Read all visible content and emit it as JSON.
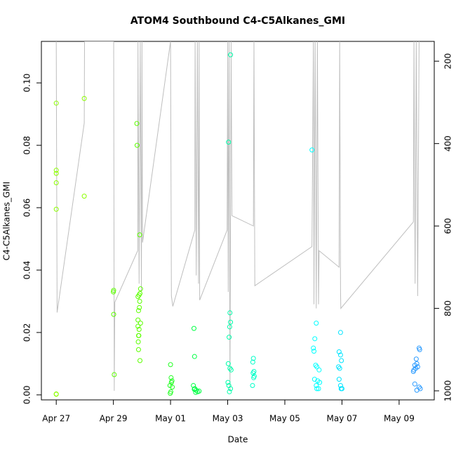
{
  "chart_data": {
    "type": "scatter",
    "title": "ATOM4 Southbound C4-C5Alkanes_GMI",
    "xlabel": "Date",
    "ylabel": "C4-C5Alkanes_GMI",
    "xlim": [
      -0.52,
      13.23
    ],
    "xticks": [
      {
        "value": 0,
        "label": "Apr 27"
      },
      {
        "value": 2,
        "label": "Apr 29"
      },
      {
        "value": 4,
        "label": "May 01"
      },
      {
        "value": 6,
        "label": "May 03"
      },
      {
        "value": 8,
        "label": "May 05"
      },
      {
        "value": 10,
        "label": "May 07"
      },
      {
        "value": 12,
        "label": "May 09"
      }
    ],
    "ylim": [
      -0.0016,
      0.1133
    ],
    "yticks": [
      {
        "value": 0,
        "label": "0.00"
      },
      {
        "value": 0.02,
        "label": "0.02"
      },
      {
        "value": 0.04,
        "label": "0.04"
      },
      {
        "value": 0.06,
        "label": "0.06"
      },
      {
        "value": 0.08,
        "label": "0.08"
      },
      {
        "value": 0.1,
        "label": "0.10"
      }
    ],
    "y2lim": [
      1022,
      152
    ],
    "y2ticks": [
      200,
      400,
      600,
      800,
      1000
    ],
    "series": [
      {
        "color": "#8cff00",
        "x": [
          0,
          0,
          0,
          0,
          0,
          0,
          0,
          0.98,
          0.98
        ],
        "values": [
          0.0935,
          0.072,
          0.071,
          0.068,
          0.0595,
          0.0003,
          0.0002,
          0.095,
          0.0637
        ]
      },
      {
        "color": "#5cff00",
        "x": [
          2.01,
          2.0,
          2.01,
          2.03,
          2.82,
          2.83,
          2.92,
          2.95,
          2.93,
          2.9,
          2.92,
          2.91,
          2.88,
          2.86,
          2.86,
          2.9,
          2.88,
          2.89,
          2.87,
          2.88,
          2.95,
          2.86,
          2.93
        ],
        "values": [
          0.0335,
          0.033,
          0.0258,
          0.0065,
          0.087,
          0.08,
          0.0513,
          0.034,
          0.0325,
          0.032,
          0.03,
          0.028,
          0.027,
          0.024,
          0.022,
          0.021,
          0.019,
          0.019,
          0.017,
          0.0145,
          0.023,
          0.0315,
          0.011
        ]
      },
      {
        "color": "#22ff22",
        "x": [
          4.0,
          4.02,
          4.05,
          4.03,
          3.98,
          4.06,
          4.01,
          3.99
        ],
        "values": [
          0.0097,
          0.0055,
          0.0045,
          0.004,
          0.003,
          0.0025,
          0.001,
          0.0005
        ]
      },
      {
        "color": "#00ff44",
        "x": [
          4.82,
          4.84,
          4.8,
          4.85,
          4.9,
          4.95,
          5.0,
          4.88,
          4.83
        ],
        "values": [
          0.0213,
          0.0123,
          0.003,
          0.002,
          0.0015,
          0.001,
          0.0012,
          0.0008,
          0.0018
        ]
      },
      {
        "color": "#00ffaa",
        "x": [
          6.1,
          6.03,
          6.08,
          6.1,
          6.07,
          6.05,
          6.02,
          6.12,
          6.08,
          6.01,
          6.04,
          6.1,
          6.06
        ],
        "values": [
          0.109,
          0.081,
          0.0263,
          0.0233,
          0.0218,
          0.0185,
          0.01,
          0.008,
          0.0085,
          0.004,
          0.003,
          0.002,
          0.001
        ]
      },
      {
        "color": "#00ffc8",
        "x": [
          6.9,
          6.88,
          6.92,
          6.89,
          6.93,
          6.91,
          6.87
        ],
        "values": [
          0.0117,
          0.0105,
          0.0075,
          0.007,
          0.006,
          0.0055,
          0.003
        ]
      },
      {
        "color": "#00ffff",
        "x": [
          8.95,
          9.1,
          9.05,
          9.0,
          9.02,
          9.08,
          9.12,
          9.2,
          9.04,
          9.15,
          9.22,
          9.1,
          9.18,
          9.12
        ],
        "values": [
          0.0785,
          0.023,
          0.018,
          0.015,
          0.014,
          0.0095,
          0.009,
          0.008,
          0.005,
          0.0045,
          0.004,
          0.003,
          0.002,
          0.002
        ]
      },
      {
        "color": "#00e5ff",
        "x": [
          9.95,
          9.9,
          9.95,
          9.98,
          9.88,
          9.92,
          9.9,
          9.95,
          9.97,
          10.0
        ],
        "values": [
          0.02,
          0.0138,
          0.0128,
          0.011,
          0.009,
          0.0085,
          0.005,
          0.003,
          0.002,
          0.002
        ]
      },
      {
        "color": "#2b9bff",
        "x": [
          12.7,
          12.72,
          12.6,
          12.62,
          12.55,
          12.65,
          12.58,
          12.52,
          12.5,
          12.55,
          12.7,
          12.74,
          12.62
        ],
        "values": [
          0.015,
          0.0145,
          0.0115,
          0.01,
          0.0095,
          0.009,
          0.0085,
          0.008,
          0.0075,
          0.0035,
          0.0025,
          0.002,
          0.0015
        ]
      },
      {
        "color": "#bebebe",
        "axis": "y2",
        "x": [
          0,
          0.03,
          0.98,
          0.99,
          2.01,
          2.03,
          2.05,
          2.85,
          2.86,
          2.9,
          2.94,
          2.98,
          3.0,
          3.02,
          4.0,
          4.03,
          4.08,
          4.85,
          4.86,
          4.9,
          4.94,
          4.98,
          5.0,
          5.02,
          5.98,
          6.0,
          6.02,
          6.05,
          6.08,
          6.1,
          6.12,
          6.15,
          6.9,
          6.92,
          6.95,
          8.95,
          9.0,
          9.02,
          9.06,
          9.1,
          9.14,
          9.18,
          9.2,
          9.9,
          9.92,
          9.95,
          9.96,
          12.5,
          12.52,
          12.56,
          12.6,
          12.65,
          12.7
        ],
        "values": [
          152,
          810,
          350,
          152,
          152,
          1000,
          785,
          660,
          152,
          740,
          152,
          760,
          152,
          640,
          152,
          770,
          795,
          610,
          152,
          720,
          152,
          740,
          152,
          780,
          610,
          152,
          760,
          152,
          1000,
          580,
          152,
          575,
          600,
          152,
          745,
          650,
          152,
          790,
          152,
          800,
          152,
          790,
          660,
          700,
          152,
          760,
          800,
          590,
          152,
          740,
          152,
          770,
          152
        ]
      }
    ]
  }
}
